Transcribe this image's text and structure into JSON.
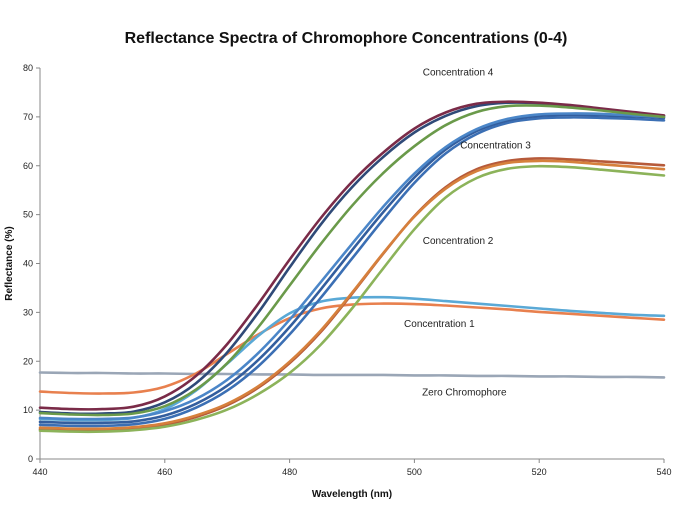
{
  "chart_data": {
    "type": "line",
    "title": "Reflectance Spectra of Chromophore Concentrations (0-4)",
    "xlabel": "Wavelength (nm)",
    "ylabel": "Reflectance (%)",
    "xlim": [
      440,
      540
    ],
    "ylim": [
      0,
      80
    ],
    "x_ticks": [
      440,
      460,
      480,
      500,
      520,
      540
    ],
    "y_ticks": [
      0,
      10,
      20,
      30,
      40,
      50,
      60,
      70,
      80
    ],
    "grid": false,
    "legend": "none",
    "x": [
      440,
      445,
      450,
      455,
      460,
      465,
      470,
      475,
      480,
      485,
      490,
      495,
      500,
      505,
      510,
      515,
      520,
      525,
      530,
      535,
      540
    ],
    "series": [
      {
        "color": "#9aa6b6",
        "values": [
          17.7,
          17.6,
          17.6,
          17.5,
          17.5,
          17.4,
          17.4,
          17.3,
          17.3,
          17.2,
          17.2,
          17.2,
          17.1,
          17.1,
          17.0,
          17.0,
          16.9,
          16.9,
          16.8,
          16.8,
          16.7
        ]
      },
      {
        "color": "#e8804e",
        "values": [
          13.8,
          13.5,
          13.4,
          13.6,
          14.8,
          17.5,
          21.5,
          25.5,
          28.8,
          30.8,
          31.6,
          31.8,
          31.7,
          31.4,
          31.0,
          30.6,
          30.1,
          29.7,
          29.3,
          28.9,
          28.5
        ]
      },
      {
        "color": "#5aa9d6",
        "values": [
          8.2,
          8.0,
          8.0,
          8.4,
          10.2,
          14.0,
          19.5,
          25.2,
          29.8,
          32.2,
          33.0,
          33.1,
          32.8,
          32.3,
          31.8,
          31.3,
          30.8,
          30.3,
          29.9,
          29.5,
          29.3
        ]
      },
      {
        "color": "#3b6fb4",
        "values": [
          7.0,
          6.8,
          6.8,
          7.1,
          8.2,
          10.5,
          14.0,
          19.0,
          25.5,
          33.0,
          41.0,
          49.0,
          56.5,
          62.5,
          66.5,
          68.8,
          69.7,
          69.9,
          69.8,
          69.6,
          69.3
        ]
      },
      {
        "color": "#335e9e",
        "values": [
          7.6,
          7.4,
          7.4,
          7.7,
          8.9,
          11.3,
          15.0,
          20.3,
          27.0,
          34.7,
          42.7,
          50.5,
          57.6,
          63.3,
          67.1,
          69.3,
          70.2,
          70.4,
          70.3,
          70.1,
          69.8
        ]
      },
      {
        "color": "#4b86c8",
        "values": [
          8.4,
          8.2,
          8.2,
          8.5,
          9.8,
          12.3,
          16.2,
          21.7,
          28.5,
          36.2,
          44.0,
          51.6,
          58.4,
          63.8,
          67.5,
          69.6,
          70.5,
          70.7,
          70.6,
          70.3,
          70.0
        ]
      },
      {
        "color": "#2f4a78",
        "values": [
          9.6,
          9.3,
          9.3,
          9.7,
          11.6,
          15.5,
          21.8,
          30.0,
          39.2,
          48.0,
          55.6,
          61.8,
          66.8,
          70.2,
          72.2,
          72.9,
          72.8,
          72.3,
          71.6,
          70.8,
          70.2
        ]
      },
      {
        "color": "#7a2b48",
        "values": [
          10.5,
          10.2,
          10.2,
          10.7,
          12.8,
          17.0,
          23.5,
          31.8,
          40.8,
          49.3,
          56.7,
          62.7,
          67.6,
          70.9,
          72.7,
          73.1,
          72.9,
          72.4,
          71.7,
          71.0,
          70.3
        ]
      },
      {
        "color": "#6a9a4a",
        "values": [
          9.4,
          9.1,
          9.0,
          9.3,
          10.8,
          14.2,
          19.6,
          27.0,
          35.5,
          44.0,
          51.8,
          58.5,
          64.0,
          68.3,
          71.0,
          72.2,
          72.3,
          71.9,
          71.3,
          70.6,
          70.0
        ]
      },
      {
        "color": "#b65a3a",
        "values": [
          6.1,
          5.9,
          5.9,
          6.2,
          7.0,
          8.6,
          11.0,
          14.6,
          19.6,
          26.0,
          33.8,
          42.0,
          49.7,
          55.6,
          59.3,
          61.0,
          61.5,
          61.3,
          60.9,
          60.5,
          60.1
        ]
      },
      {
        "color": "#d6803c",
        "values": [
          6.4,
          6.2,
          6.2,
          6.5,
          7.3,
          8.9,
          11.3,
          14.9,
          19.9,
          26.3,
          34.0,
          42.1,
          49.6,
          55.3,
          58.9,
          60.6,
          61.0,
          60.8,
          60.3,
          59.8,
          59.3
        ]
      },
      {
        "color": "#8cb35a",
        "values": [
          5.8,
          5.6,
          5.6,
          5.9,
          6.6,
          8.0,
          10.1,
          13.3,
          17.6,
          23.4,
          30.8,
          39.0,
          47.0,
          53.5,
          57.5,
          59.4,
          59.9,
          59.7,
          59.2,
          58.6,
          58.0
        ]
      }
    ],
    "annotations": [
      {
        "text": "Concentration 4",
        "x": 507,
        "y": 78.5
      },
      {
        "text": "Concentration 3",
        "x": 513,
        "y": 63.5
      },
      {
        "text": "Concentration 2",
        "x": 507,
        "y": 44.0
      },
      {
        "text": "Concentration 1",
        "x": 504,
        "y": 27.0
      },
      {
        "text": "Zero Chromophore",
        "x": 508,
        "y": 13.0
      }
    ]
  }
}
